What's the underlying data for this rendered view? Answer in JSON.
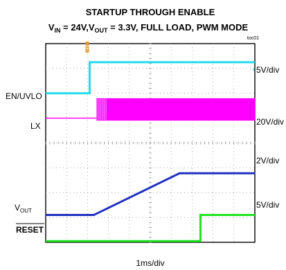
{
  "chart_data": {
    "type": "line",
    "title": "STARTUP THROUGH ENABLE",
    "subtitle": {
      "vin_label": "V",
      "vin_sub": "IN",
      "vin_value": " = 24V,",
      "vout_label": "V",
      "vout_sub": "OUT",
      "rest": " = 3.3V,  FULL LOAD, PWM MODE"
    },
    "figure_id": "toc01",
    "xlabel": "1ms/div",
    "xlim": [
      0,
      10
    ],
    "grid": true,
    "divisions": {
      "x": 10,
      "y": 8
    },
    "series": [
      {
        "name": "EN/UVLO",
        "color": "#22dbee",
        "scale_label": "5V/div",
        "x": [
          0,
          2.1,
          2.1,
          10
        ],
        "y_div": [
          6.0,
          6.0,
          7.25,
          7.25
        ]
      },
      {
        "name": "LX",
        "color": "#ff00ff",
        "scale_label": "20V/div",
        "envelope": true,
        "x": [
          0,
          2.45,
          2.45,
          10
        ],
        "y_div_low": [
          5.0,
          5.0,
          4.92,
          4.92
        ],
        "y_div_high": [
          5.0,
          5.0,
          5.78,
          5.78
        ],
        "burst_start": 2.45,
        "burst_end": 2.9
      },
      {
        "name_main": "V",
        "name_sub": "OUT",
        "color": "#1f2fc2",
        "scale_label": "2V/div",
        "x": [
          0,
          2.3,
          6.4,
          10
        ],
        "y_div": [
          1.1,
          1.1,
          2.78,
          2.78
        ]
      },
      {
        "name": "RESET",
        "color": "#20e320",
        "scale_label": "5V/div",
        "x": [
          0,
          7.4,
          7.4,
          10
        ],
        "y_div": [
          0.05,
          0.05,
          1.1,
          1.1
        ]
      }
    ]
  }
}
